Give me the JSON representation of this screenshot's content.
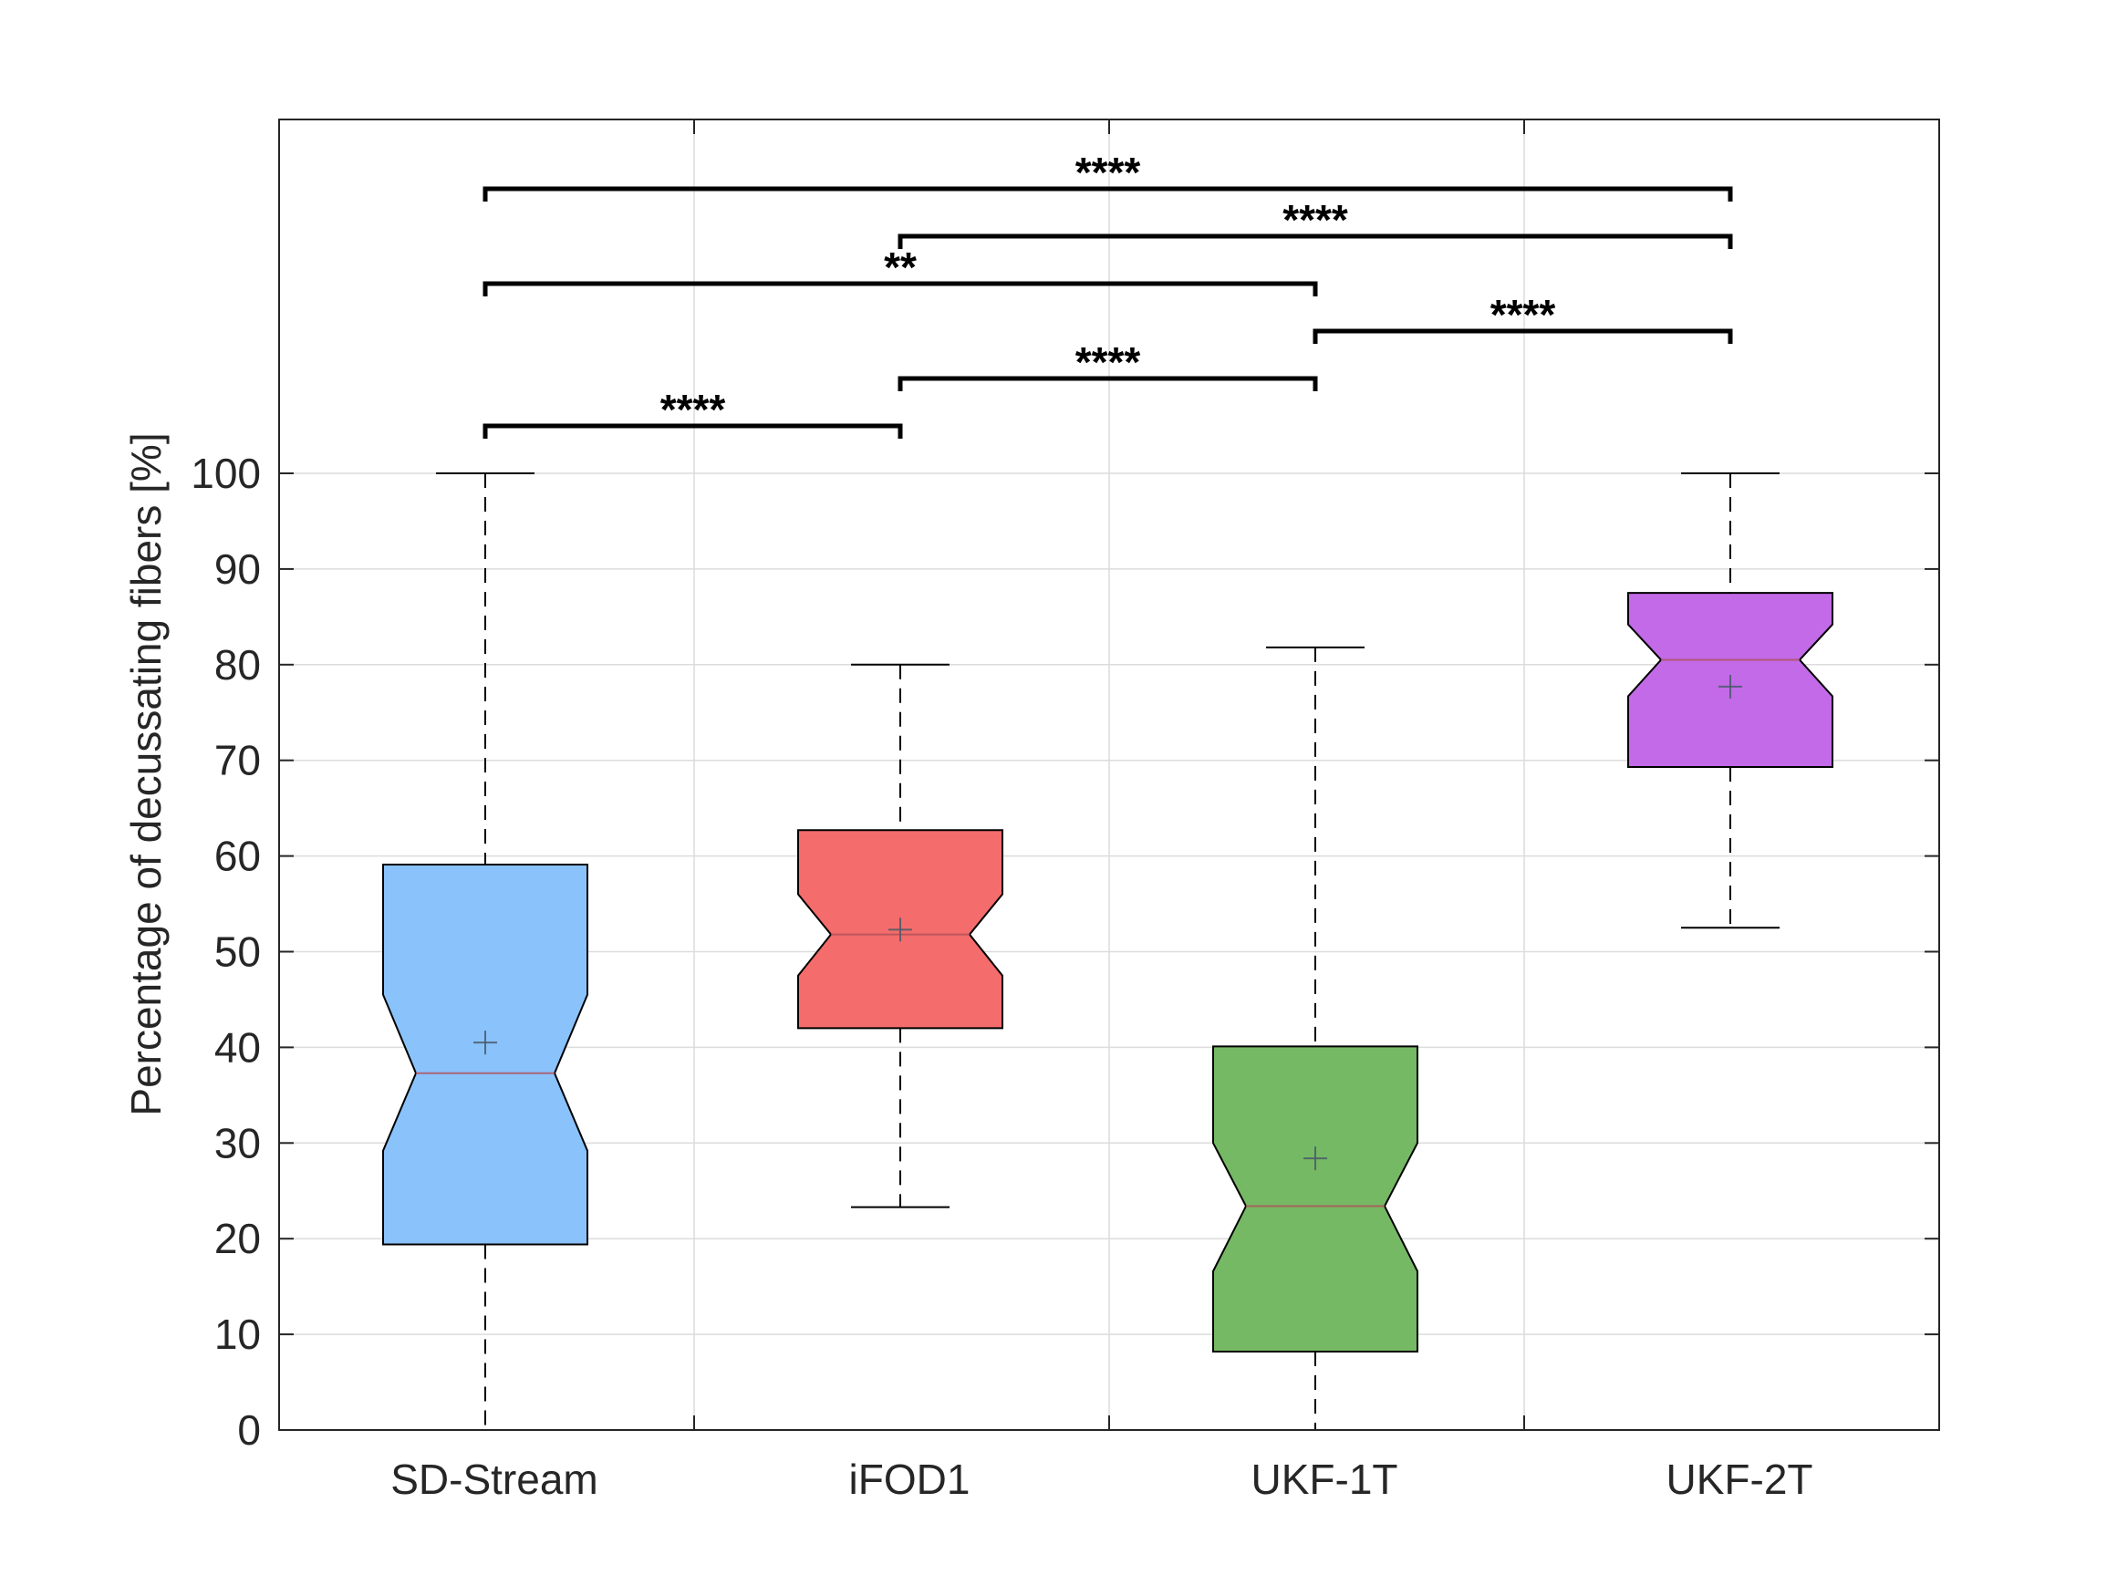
{
  "chart_data": {
    "type": "boxplot",
    "title": "",
    "xlabel": "",
    "ylabel": "Percentage of decussating fibers [%]",
    "ylim": [
      0,
      100
    ],
    "yticks": [
      0,
      10,
      20,
      30,
      40,
      50,
      60,
      70,
      80,
      90,
      100
    ],
    "grid": true,
    "notched": true,
    "categories": [
      "SD-Stream",
      "iFOD1",
      "UKF-1T",
      "UKF-2T"
    ],
    "series": [
      {
        "whisker_low": 0,
        "q1": 19.4,
        "notch_low": 29.2,
        "median": 37.3,
        "notch_high": 45.5,
        "q3": 59.1,
        "whisker_high": 100,
        "mean": 40.5,
        "color": "#8ac2fc"
      },
      {
        "whisker_low": 23.3,
        "q1": 42.0,
        "notch_low": 47.5,
        "median": 51.8,
        "notch_high": 56.0,
        "q3": 62.7,
        "whisker_high": 80,
        "mean": 52.3,
        "color": "#f46c6b"
      },
      {
        "whisker_low": 0,
        "q1": 8.2,
        "notch_low": 16.6,
        "median": 23.4,
        "notch_high": 30.0,
        "q3": 40.1,
        "whisker_high": 81.8,
        "mean": 28.4,
        "color": "#76b964"
      },
      {
        "whisker_low": 52.5,
        "q1": 69.3,
        "notch_low": 76.7,
        "median": 80.5,
        "notch_high": 84.2,
        "q3": 87.5,
        "whisker_high": 100,
        "mean": 77.7,
        "color": "#c26ae8"
      }
    ],
    "significance": [
      {
        "from": 0,
        "to": 1,
        "label": "****",
        "level": 1
      },
      {
        "from": 1,
        "to": 2,
        "label": "****",
        "level": 2
      },
      {
        "from": 2,
        "to": 3,
        "label": "****",
        "level": 3
      },
      {
        "from": 0,
        "to": 2,
        "label": "**",
        "level": 4
      },
      {
        "from": 1,
        "to": 3,
        "label": "****",
        "level": 5
      },
      {
        "from": 0,
        "to": 3,
        "label": "****",
        "level": 6
      }
    ]
  }
}
